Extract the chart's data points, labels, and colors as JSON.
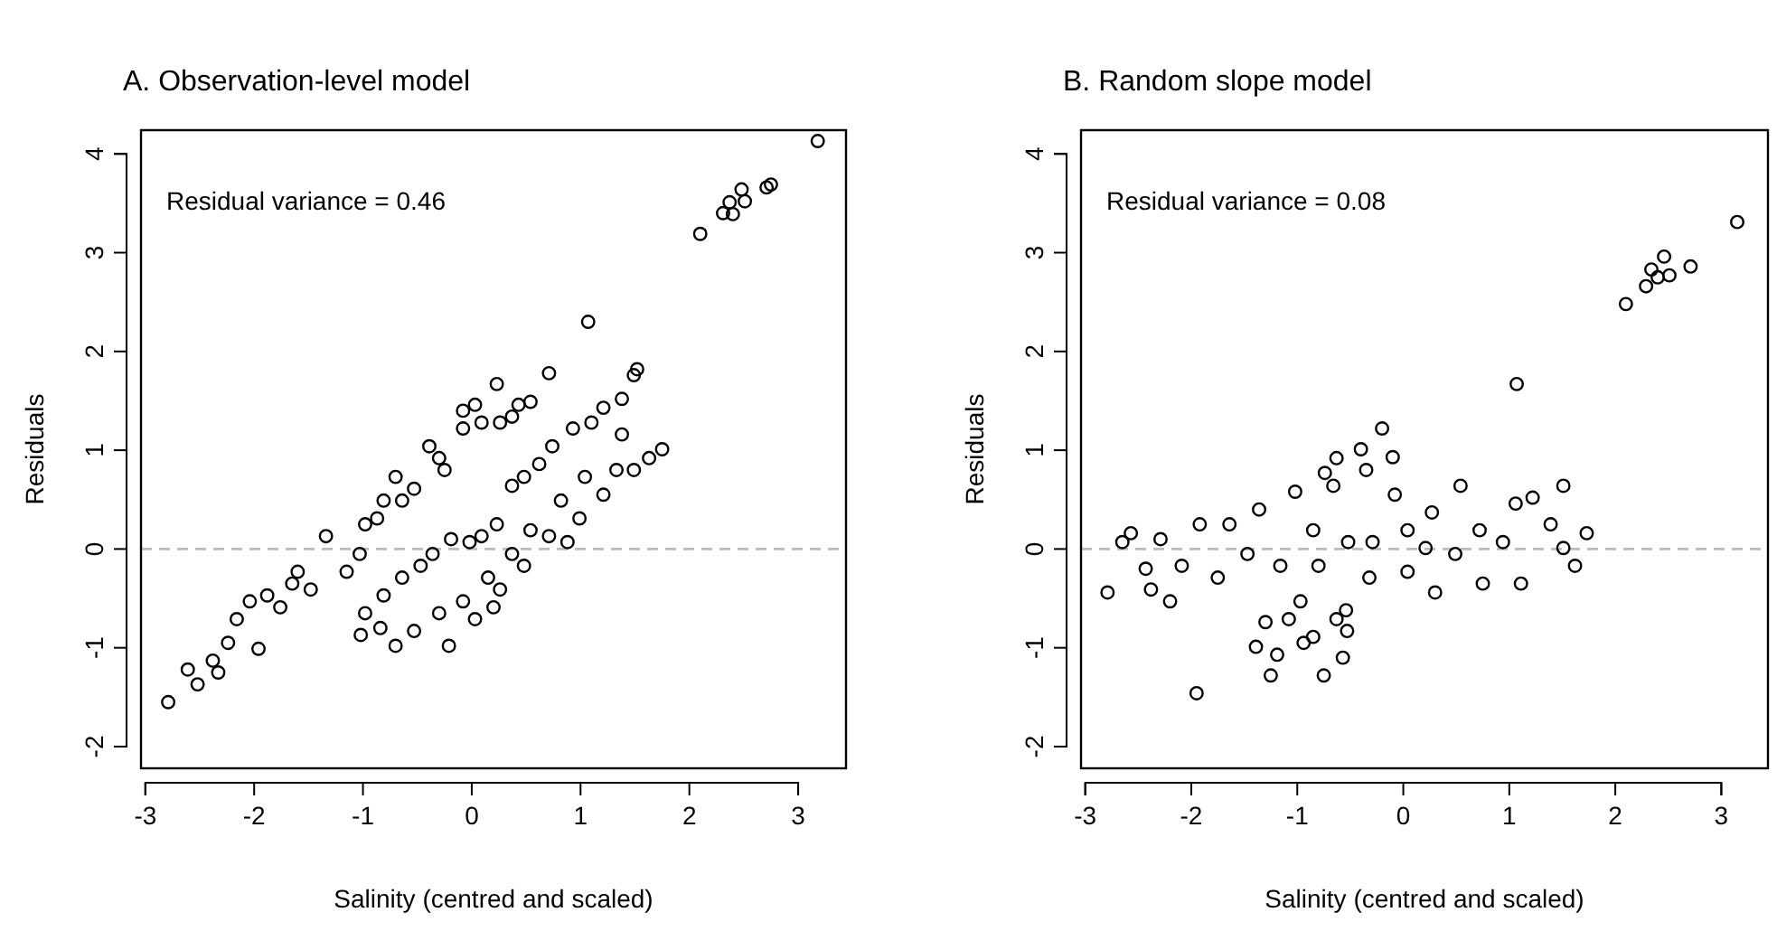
{
  "chart_data": [
    {
      "type": "scatter",
      "title": "A. Observation-level model",
      "xlabel": "Salinity (centred and scaled)",
      "ylabel": "Residuals",
      "annotations": [
        "Residual variance = 0.46"
      ],
      "xlim": [
        -3.04,
        3.44
      ],
      "ylim": [
        -2.22,
        4.24
      ],
      "xticks": [
        -3,
        -2,
        -1,
        0,
        1,
        2,
        3
      ],
      "yticks": [
        -2,
        -1,
        0,
        1,
        2,
        3,
        4
      ],
      "grid": false,
      "marker": "circle",
      "ref_lines": [
        {
          "axis": "y",
          "value": 0,
          "color": "#bbbbbb",
          "line_style": "dashed"
        }
      ],
      "series": [
        {
          "color": "#000000",
          "x": [
            -2.79,
            -2.61,
            -2.52,
            -2.38,
            -2.33,
            -2.16,
            -2.24,
            -1.96,
            -1.88,
            -1.76,
            -1.6,
            -1.48,
            -1.34,
            -1.15,
            -1.03,
            -0.98,
            -0.81,
            -0.7,
            -0.53,
            -0.39,
            -0.25,
            -0.08,
            0.03,
            0.23,
            0.26,
            0.43,
            0.54,
            0.71,
            1.07,
            -2.04,
            -1.65,
            -0.87,
            -0.64,
            -0.3,
            0.09,
            -0.08,
            0.37,
            -1.02,
            -0.98,
            -0.81,
            -0.64,
            -0.47,
            -0.36,
            -0.19,
            -0.02,
            0.09,
            0.23,
            0.37,
            0.48,
            0.62,
            0.74,
            0.93,
            1.1,
            1.21,
            1.38,
            1.49,
            1.52,
            -0.84,
            -0.7,
            -0.53,
            -0.3,
            -0.21,
            -0.08,
            0.03,
            0.15,
            0.26,
            0.37,
            0.48,
            0.54,
            0.71,
            0.82,
            0.99,
            1.04,
            1.21,
            1.38,
            1.33,
            1.49,
            1.63,
            1.75,
            0.88,
            0.2,
            2.1,
            2.31,
            2.37,
            2.48,
            2.51,
            2.4,
            2.71,
            2.75,
            3.18
          ],
          "values": [
            -1.55,
            -1.22,
            -1.37,
            -1.13,
            -1.25,
            -0.71,
            -0.95,
            -1.01,
            -0.47,
            -0.59,
            -0.23,
            -0.41,
            0.13,
            -0.23,
            -0.05,
            0.25,
            0.49,
            0.73,
            0.61,
            1.04,
            0.8,
            1.22,
            1.46,
            1.67,
            1.28,
            1.46,
            1.49,
            1.78,
            2.3,
            -0.53,
            -0.35,
            0.31,
            0.49,
            0.92,
            1.28,
            1.4,
            1.34,
            -0.87,
            -0.65,
            -0.47,
            -0.29,
            -0.17,
            -0.05,
            0.1,
            0.07,
            0.13,
            0.25,
            0.64,
            0.73,
            0.86,
            1.04,
            1.22,
            1.28,
            1.43,
            1.52,
            1.76,
            1.82,
            -0.8,
            -0.98,
            -0.83,
            -0.65,
            -0.98,
            -0.53,
            -0.71,
            -0.29,
            -0.41,
            -0.05,
            -0.17,
            0.19,
            0.13,
            0.49,
            0.31,
            0.73,
            0.55,
            1.16,
            0.8,
            0.8,
            0.92,
            1.01,
            0.07,
            -0.59,
            3.19,
            3.4,
            3.51,
            3.64,
            3.52,
            3.39,
            3.66,
            3.69,
            4.13
          ]
        }
      ]
    },
    {
      "type": "scatter",
      "title": "B. Random slope model",
      "xlabel": "Salinity (centred and scaled)",
      "ylabel": "Residuals",
      "annotations": [
        "Residual variance = 0.08"
      ],
      "xlim": [
        -3.04,
        3.44
      ],
      "ylim": [
        -2.22,
        4.24
      ],
      "xticks": [
        -3,
        -2,
        -1,
        0,
        1,
        2,
        3
      ],
      "yticks": [
        -2,
        -1,
        0,
        1,
        2,
        3,
        4
      ],
      "grid": false,
      "marker": "circle",
      "ref_lines": [
        {
          "axis": "y",
          "value": 0,
          "color": "#bbbbbb",
          "line_style": "dashed"
        }
      ],
      "series": [
        {
          "color": "#000000",
          "x": [
            -2.79,
            -2.65,
            -2.57,
            -2.43,
            -2.38,
            -2.29,
            -2.2,
            -2.09,
            -1.95,
            -1.92,
            -1.75,
            -1.64,
            -1.47,
            -1.36,
            -1.39,
            -1.3,
            -1.25,
            -1.19,
            -1.16,
            -1.08,
            -1.02,
            -0.97,
            -0.94,
            -0.85,
            -0.85,
            -0.75,
            -0.74,
            -0.66,
            -0.63,
            -0.63,
            -0.57,
            -0.54,
            -0.53,
            -0.4,
            -0.35,
            -0.32,
            -0.29,
            -0.2,
            -0.1,
            -0.08,
            0.04,
            0.04,
            0.27,
            0.3,
            0.49,
            0.54,
            0.72,
            0.75,
            0.94,
            1.06,
            1.07,
            1.11,
            1.22,
            1.39,
            1.51,
            1.51,
            1.73,
            1.62,
            0.21,
            -0.52,
            -0.8,
            2.1,
            2.29,
            2.34,
            2.4,
            2.46,
            2.51,
            2.71,
            3.15
          ],
          "values": [
            -0.44,
            0.07,
            0.16,
            -0.2,
            -0.41,
            0.1,
            -0.53,
            -0.17,
            -1.46,
            0.25,
            -0.29,
            0.25,
            -0.05,
            0.4,
            -0.99,
            -0.74,
            -1.28,
            -1.07,
            -0.17,
            -0.71,
            0.58,
            -0.53,
            -0.95,
            -0.89,
            0.19,
            -1.28,
            0.77,
            0.64,
            0.92,
            -0.71,
            -1.1,
            -0.62,
            -0.83,
            1.01,
            0.8,
            -0.29,
            0.07,
            1.22,
            0.93,
            0.55,
            0.19,
            -0.23,
            0.37,
            -0.44,
            -0.05,
            0.64,
            0.19,
            -0.35,
            0.07,
            0.46,
            1.67,
            -0.35,
            0.52,
            0.25,
            0.64,
            0.01,
            0.16,
            -0.17,
            0.01,
            0.07,
            -0.17,
            2.48,
            2.66,
            2.83,
            2.75,
            2.96,
            2.77,
            2.86,
            3.31
          ]
        }
      ]
    }
  ]
}
